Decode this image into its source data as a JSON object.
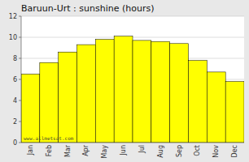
{
  "chart_data": {
    "type": "bar",
    "title": "Baruun-Urt : sunshine (hours)",
    "categories": [
      "Jan",
      "Feb",
      "Mar",
      "Apr",
      "May",
      "Jun",
      "Jul",
      "Aug",
      "Sep",
      "Oct",
      "Nov",
      "Dec"
    ],
    "values": [
      6.5,
      7.6,
      8.6,
      9.3,
      9.8,
      10.1,
      9.7,
      9.6,
      9.4,
      7.8,
      6.7,
      5.8
    ],
    "color": "#FFFF00",
    "ylim": [
      0,
      12
    ],
    "yticks": [
      0,
      2,
      4,
      6,
      8,
      10,
      12
    ],
    "grid": true,
    "annotations": [
      "www.allmetsat.com"
    ]
  }
}
